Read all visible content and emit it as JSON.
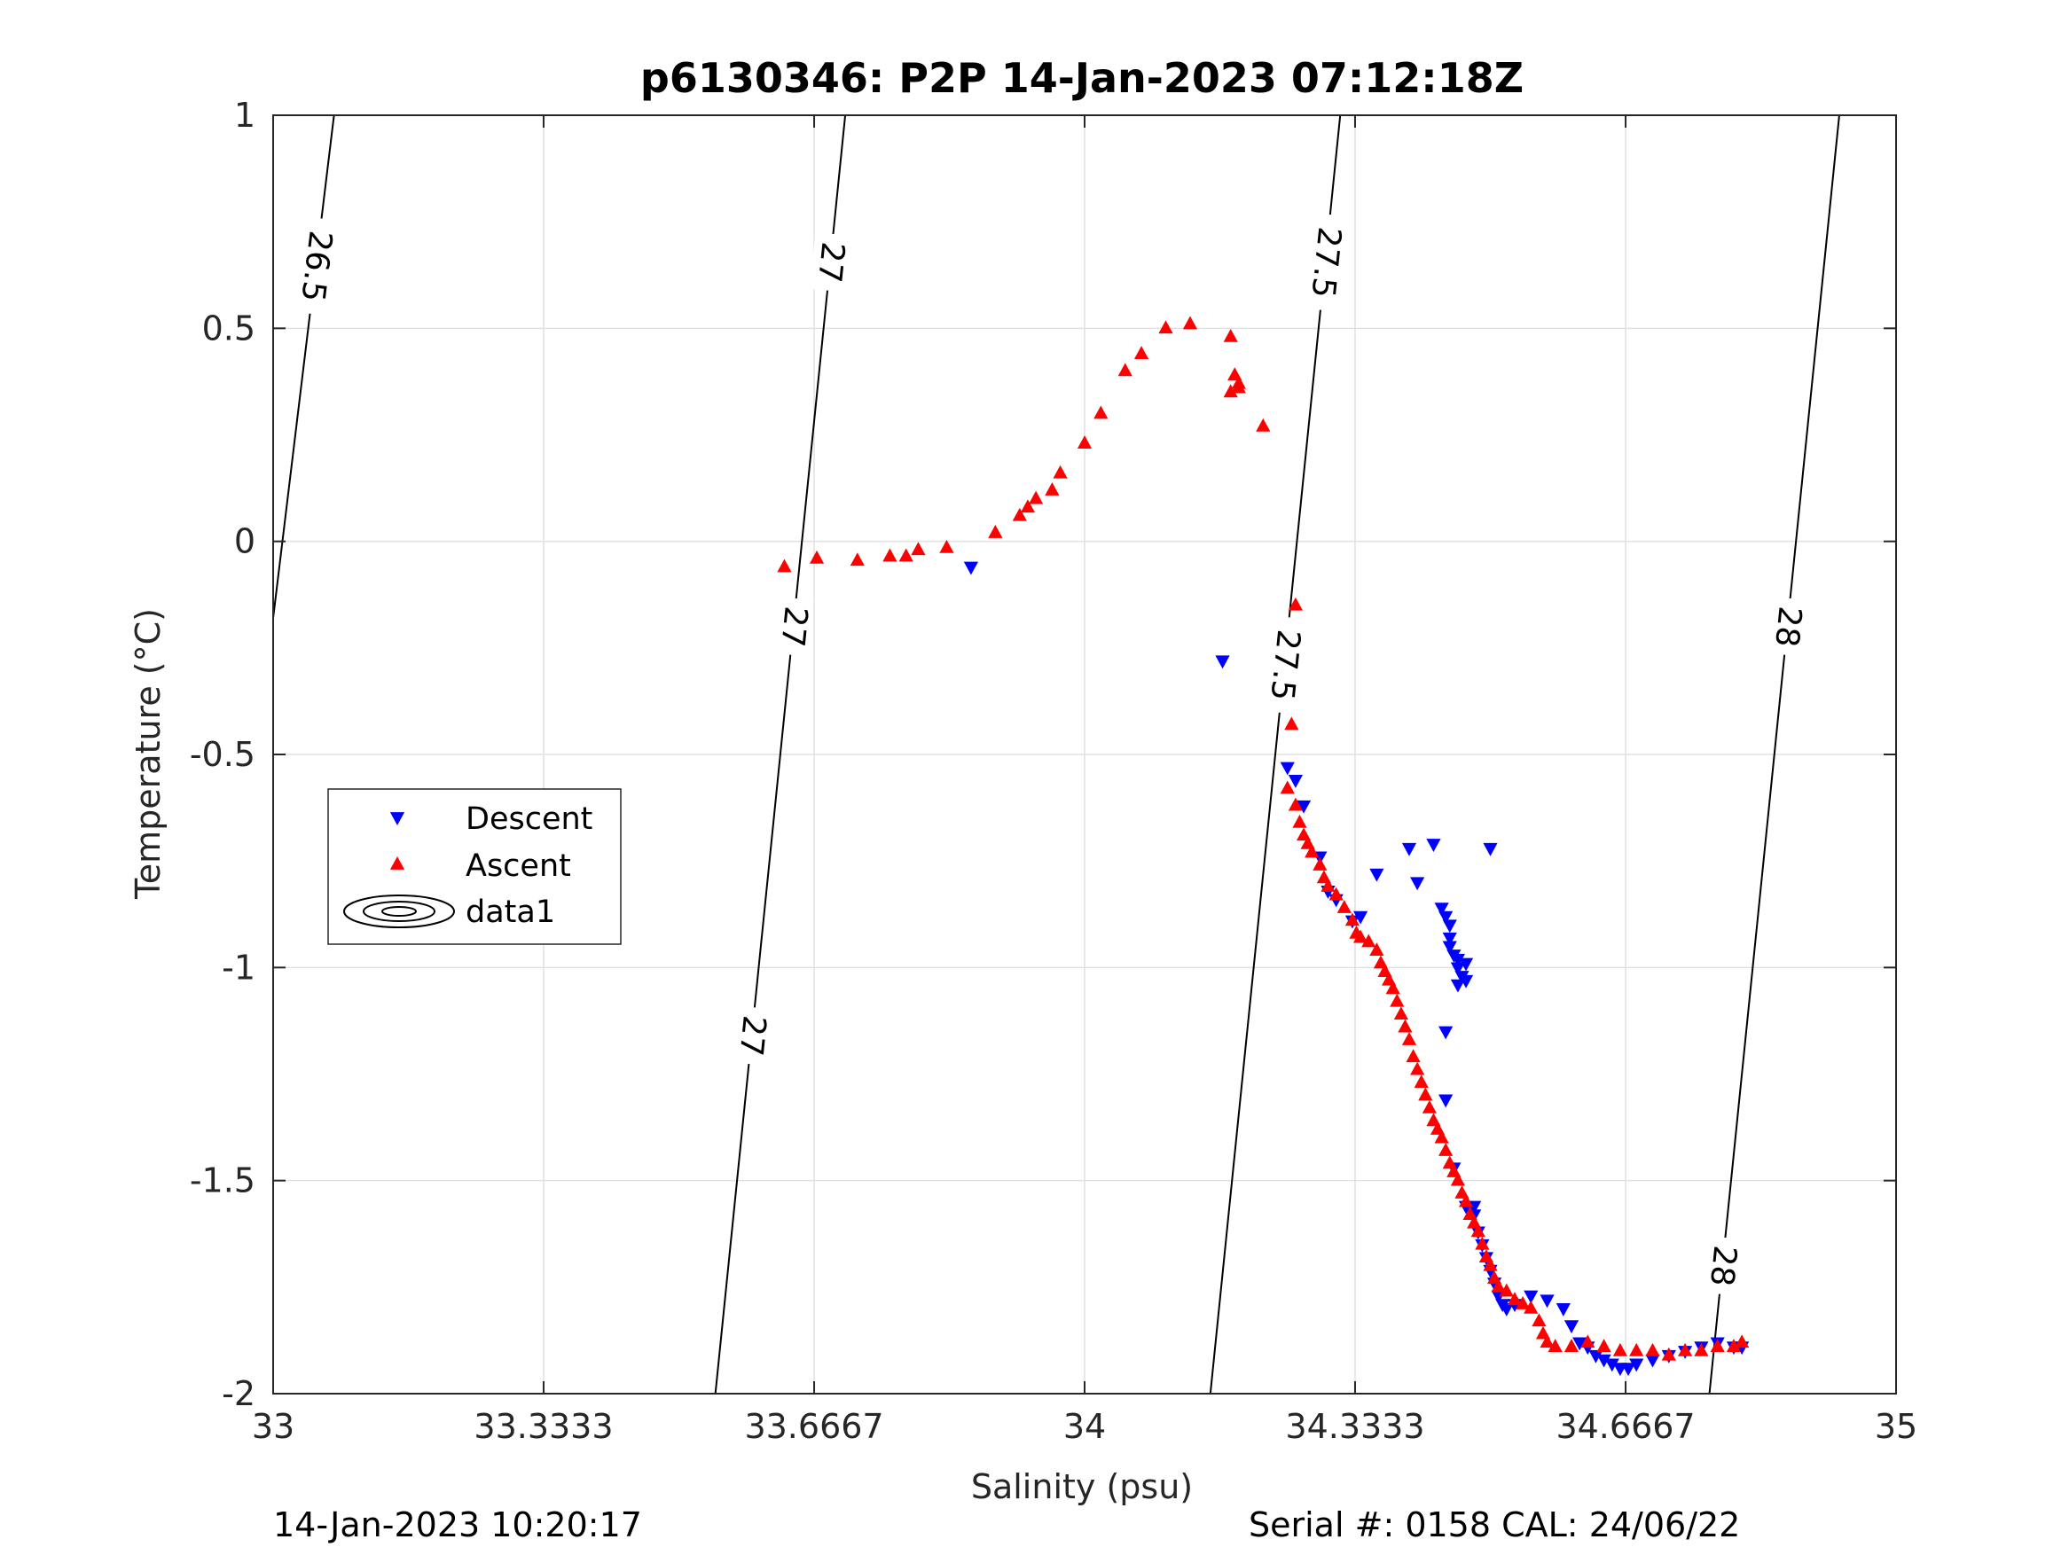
{
  "chart_data": {
    "type": "scatter",
    "title": "p6130346: P2P 14-Jan-2023 07:12:18Z",
    "xlabel": "Salinity (psu)",
    "ylabel": "Temperature (°C)",
    "xlim": [
      33,
      35
    ],
    "ylim": [
      -2,
      1
    ],
    "x_ticks": [
      33,
      33.3333,
      33.6667,
      34,
      34.3333,
      34.6667,
      35
    ],
    "x_tick_labels": [
      "33",
      "33.3333",
      "33.6667",
      "34",
      "34.3333",
      "34.6667",
      "35"
    ],
    "y_ticks": [
      -2,
      -1.5,
      -1,
      -0.5,
      0,
      0.5,
      1
    ],
    "y_tick_labels": [
      "-2",
      "-1.5",
      "-1",
      "-0.5",
      "0",
      "0.5",
      "1"
    ],
    "grid": true,
    "legend_position": "middle-left",
    "colors": {
      "descent": "#0000ff",
      "ascent": "#ff0000",
      "contour": "#000000"
    },
    "series": [
      {
        "name": "Descent",
        "marker": "triangle-down",
        "points": [
          [
            33.86,
            -0.06
          ],
          [
            34.17,
            -0.28
          ],
          [
            34.25,
            -0.53
          ],
          [
            34.26,
            -0.56
          ],
          [
            34.27,
            -0.62
          ],
          [
            34.29,
            -0.74
          ],
          [
            34.3,
            -0.82
          ],
          [
            34.31,
            -0.84
          ],
          [
            34.33,
            -0.89
          ],
          [
            34.34,
            -0.88
          ],
          [
            34.36,
            -0.78
          ],
          [
            34.4,
            -0.72
          ],
          [
            34.41,
            -0.8
          ],
          [
            34.43,
            -0.71
          ],
          [
            34.5,
            -0.72
          ],
          [
            34.44,
            -0.86
          ],
          [
            34.445,
            -0.88
          ],
          [
            34.45,
            -0.9
          ],
          [
            34.45,
            -0.93
          ],
          [
            34.45,
            -0.95
          ],
          [
            34.455,
            -0.97
          ],
          [
            34.46,
            -0.98
          ],
          [
            34.46,
            -1.0
          ],
          [
            34.465,
            -1.02
          ],
          [
            34.47,
            -1.03
          ],
          [
            34.46,
            -1.04
          ],
          [
            34.47,
            -0.99
          ],
          [
            34.445,
            -1.15
          ],
          [
            34.445,
            -1.31
          ],
          [
            34.455,
            -1.47
          ],
          [
            34.47,
            -1.56
          ],
          [
            34.48,
            -1.56
          ],
          [
            34.48,
            -1.58
          ],
          [
            34.485,
            -1.62
          ],
          [
            34.49,
            -1.65
          ],
          [
            34.495,
            -1.68
          ],
          [
            34.5,
            -1.71
          ],
          [
            34.505,
            -1.74
          ],
          [
            34.51,
            -1.77
          ],
          [
            34.515,
            -1.79
          ],
          [
            34.52,
            -1.8
          ],
          [
            34.53,
            -1.79
          ],
          [
            34.55,
            -1.77
          ],
          [
            34.57,
            -1.78
          ],
          [
            34.59,
            -1.8
          ],
          [
            34.6,
            -1.84
          ],
          [
            34.61,
            -1.88
          ],
          [
            34.62,
            -1.89
          ],
          [
            34.63,
            -1.91
          ],
          [
            34.64,
            -1.92
          ],
          [
            34.65,
            -1.93
          ],
          [
            34.66,
            -1.94
          ],
          [
            34.67,
            -1.94
          ],
          [
            34.68,
            -1.93
          ],
          [
            34.7,
            -1.92
          ],
          [
            34.72,
            -1.91
          ],
          [
            34.74,
            -1.9
          ],
          [
            34.76,
            -1.89
          ],
          [
            34.78,
            -1.88
          ],
          [
            34.8,
            -1.89
          ],
          [
            34.81,
            -1.89
          ]
        ]
      },
      {
        "name": "Ascent",
        "marker": "triangle-up",
        "points": [
          [
            33.63,
            -0.06
          ],
          [
            33.67,
            -0.04
          ],
          [
            33.72,
            -0.045
          ],
          [
            33.76,
            -0.035
          ],
          [
            33.78,
            -0.035
          ],
          [
            33.795,
            -0.02
          ],
          [
            33.83,
            -0.015
          ],
          [
            33.89,
            0.02
          ],
          [
            33.92,
            0.06
          ],
          [
            33.93,
            0.08
          ],
          [
            33.94,
            0.1
          ],
          [
            33.96,
            0.12
          ],
          [
            33.97,
            0.16
          ],
          [
            34.0,
            0.23
          ],
          [
            34.02,
            0.3
          ],
          [
            34.05,
            0.4
          ],
          [
            34.07,
            0.44
          ],
          [
            34.1,
            0.5
          ],
          [
            34.13,
            0.51
          ],
          [
            34.18,
            0.48
          ],
          [
            34.185,
            0.39
          ],
          [
            34.19,
            0.37
          ],
          [
            34.19,
            0.36
          ],
          [
            34.18,
            0.35
          ],
          [
            34.22,
            0.27
          ],
          [
            34.26,
            -0.15
          ],
          [
            34.255,
            -0.43
          ],
          [
            34.25,
            -0.58
          ],
          [
            34.26,
            -0.62
          ],
          [
            34.265,
            -0.66
          ],
          [
            34.27,
            -0.69
          ],
          [
            34.275,
            -0.71
          ],
          [
            34.28,
            -0.73
          ],
          [
            34.29,
            -0.76
          ],
          [
            34.295,
            -0.79
          ],
          [
            34.3,
            -0.81
          ],
          [
            34.31,
            -0.83
          ],
          [
            34.32,
            -0.86
          ],
          [
            34.33,
            -0.89
          ],
          [
            34.335,
            -0.92
          ],
          [
            34.34,
            -0.93
          ],
          [
            34.35,
            -0.94
          ],
          [
            34.36,
            -0.96
          ],
          [
            34.365,
            -0.99
          ],
          [
            34.37,
            -1.01
          ],
          [
            34.375,
            -1.03
          ],
          [
            34.38,
            -1.05
          ],
          [
            34.385,
            -1.08
          ],
          [
            34.39,
            -1.11
          ],
          [
            34.395,
            -1.14
          ],
          [
            34.4,
            -1.17
          ],
          [
            34.405,
            -1.21
          ],
          [
            34.41,
            -1.24
          ],
          [
            34.415,
            -1.27
          ],
          [
            34.42,
            -1.3
          ],
          [
            34.425,
            -1.33
          ],
          [
            34.43,
            -1.36
          ],
          [
            34.435,
            -1.38
          ],
          [
            34.44,
            -1.4
          ],
          [
            34.445,
            -1.43
          ],
          [
            34.45,
            -1.46
          ],
          [
            34.455,
            -1.48
          ],
          [
            34.46,
            -1.5
          ],
          [
            34.465,
            -1.53
          ],
          [
            34.47,
            -1.55
          ],
          [
            34.475,
            -1.58
          ],
          [
            34.48,
            -1.6
          ],
          [
            34.485,
            -1.62
          ],
          [
            34.49,
            -1.65
          ],
          [
            34.495,
            -1.68
          ],
          [
            34.5,
            -1.7
          ],
          [
            34.505,
            -1.73
          ],
          [
            34.51,
            -1.75
          ],
          [
            34.52,
            -1.76
          ],
          [
            34.53,
            -1.78
          ],
          [
            34.54,
            -1.79
          ],
          [
            34.55,
            -1.8
          ],
          [
            34.56,
            -1.83
          ],
          [
            34.565,
            -1.86
          ],
          [
            34.57,
            -1.88
          ],
          [
            34.58,
            -1.89
          ],
          [
            34.6,
            -1.89
          ],
          [
            34.62,
            -1.88
          ],
          [
            34.64,
            -1.89
          ],
          [
            34.66,
            -1.9
          ],
          [
            34.68,
            -1.9
          ],
          [
            34.7,
            -1.9
          ],
          [
            34.72,
            -1.91
          ],
          [
            34.74,
            -1.9
          ],
          [
            34.76,
            -1.9
          ],
          [
            34.78,
            -1.89
          ],
          [
            34.8,
            -1.89
          ],
          [
            34.81,
            -1.88
          ]
        ]
      },
      {
        "name": "data1",
        "marker": "contour",
        "isopycnals": [
          {
            "level": "26.5",
            "labels": [
              "26.5"
            ],
            "line": [
              [
                33.0,
                -0.18
              ],
              [
                33.075,
                1.0
              ]
            ]
          },
          {
            "level": "27",
            "labels": [
              "27",
              "27",
              "27"
            ],
            "line": [
              [
                33.545,
                -2.0
              ],
              [
                33.705,
                1.0
              ]
            ]
          },
          {
            "level": "27.5",
            "labels": [
              "27.5",
              "27.5"
            ],
            "line": [
              [
                34.155,
                -2.0
              ],
              [
                34.315,
                1.0
              ]
            ]
          },
          {
            "level": "28",
            "labels": [
              "28",
              "28"
            ],
            "line": [
              [
                34.77,
                -2.0
              ],
              [
                34.93,
                1.0
              ]
            ]
          }
        ]
      }
    ]
  },
  "footer": {
    "left_text": "14-Jan-2023 10:20:17",
    "right_text": "Serial #: 0158  CAL: 24/06/22"
  }
}
